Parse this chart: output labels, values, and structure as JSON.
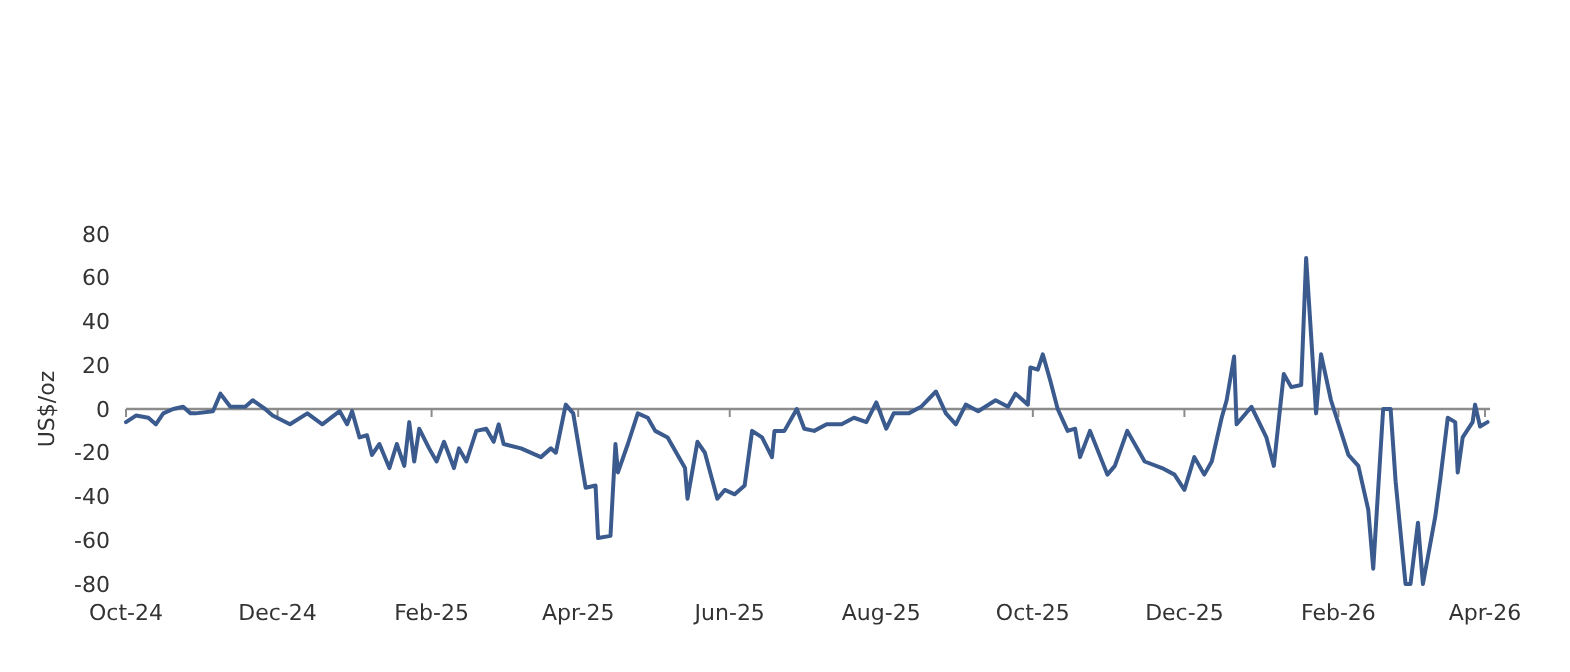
{
  "chart_data": {
    "type": "line",
    "ylabel": "US$/oz",
    "xlim": [
      "2024-10-01",
      "2026-04-03"
    ],
    "ylim": [
      -80,
      80
    ],
    "yticks": [
      -80,
      -60,
      -40,
      -20,
      0,
      20,
      40,
      60,
      80
    ],
    "xticks": [
      {
        "value": "2024-10-01",
        "label": "Oct-24"
      },
      {
        "value": "2024-12-01",
        "label": "Dec-24"
      },
      {
        "value": "2025-02-01",
        "label": "Feb-25"
      },
      {
        "value": "2025-04-01",
        "label": "Apr-25"
      },
      {
        "value": "2025-06-01",
        "label": "Jun-25"
      },
      {
        "value": "2025-08-01",
        "label": "Aug-25"
      },
      {
        "value": "2025-10-01",
        "label": "Oct-25"
      },
      {
        "value": "2025-12-01",
        "label": "Dec-25"
      },
      {
        "value": "2026-02-01",
        "label": "Feb-26"
      },
      {
        "value": "2026-04-01",
        "label": "Apr-26"
      }
    ],
    "line_style": "solid",
    "marker": "none",
    "x": [
      "2024-10-01",
      "2024-10-05",
      "2024-10-10",
      "2024-10-13",
      "2024-10-16",
      "2024-10-20",
      "2024-10-24",
      "2024-10-27",
      "2024-10-29",
      "2024-11-05",
      "2024-11-08",
      "2024-11-12",
      "2024-11-18",
      "2024-11-21",
      "2024-11-26",
      "2024-11-29",
      "2024-12-06",
      "2024-12-13",
      "2024-12-19",
      "2024-12-26",
      "2024-12-29",
      "2024-12-31",
      "2025-01-03",
      "2025-01-06",
      "2025-01-08",
      "2025-01-11",
      "2025-01-15",
      "2025-01-18",
      "2025-01-21",
      "2025-01-23",
      "2025-01-25",
      "2025-01-27",
      "2025-01-31",
      "2025-02-03",
      "2025-02-06",
      "2025-02-10",
      "2025-02-12",
      "2025-02-15",
      "2025-02-19",
      "2025-02-23",
      "2025-02-26",
      "2025-02-28",
      "2025-03-02",
      "2025-03-09",
      "2025-03-17",
      "2025-03-21",
      "2025-03-23",
      "2025-03-27",
      "2025-03-30",
      "2025-04-04",
      "2025-04-08",
      "2025-04-09",
      "2025-04-14",
      "2025-04-16",
      "2025-04-17",
      "2025-04-21",
      "2025-04-25",
      "2025-04-29",
      "2025-05-02",
      "2025-05-07",
      "2025-05-14",
      "2025-05-15",
      "2025-05-19",
      "2025-05-22",
      "2025-05-27",
      "2025-05-30",
      "2025-06-03",
      "2025-06-07",
      "2025-06-10",
      "2025-06-14",
      "2025-06-18",
      "2025-06-19",
      "2025-06-23",
      "2025-06-28",
      "2025-07-01",
      "2025-07-05",
      "2025-07-10",
      "2025-07-16",
      "2025-07-21",
      "2025-07-26",
      "2025-07-30",
      "2025-08-03",
      "2025-08-06",
      "2025-08-12",
      "2025-08-17",
      "2025-08-23",
      "2025-08-27",
      "2025-08-31",
      "2025-09-04",
      "2025-09-09",
      "2025-09-16",
      "2025-09-21",
      "2025-09-24",
      "2025-09-29",
      "2025-09-30",
      "2025-10-03",
      "2025-10-05",
      "2025-10-08",
      "2025-10-11",
      "2025-10-15",
      "2025-10-18",
      "2025-10-20",
      "2025-10-24",
      "2025-10-31",
      "2025-11-03",
      "2025-11-08",
      "2025-11-15",
      "2025-11-22",
      "2025-11-27",
      "2025-12-01",
      "2025-12-05",
      "2025-12-09",
      "2025-12-12",
      "2025-12-16",
      "2025-12-18",
      "2025-12-21",
      "2025-12-22",
      "2025-12-28",
      "2026-01-03",
      "2026-01-06",
      "2026-01-10",
      "2026-01-13",
      "2026-01-17",
      "2026-01-19",
      "2026-01-23",
      "2026-01-25",
      "2026-01-29",
      "2026-02-05",
      "2026-02-09",
      "2026-02-13",
      "2026-02-15",
      "2026-02-19",
      "2026-02-22",
      "2026-02-24",
      "2026-02-28",
      "2026-03-02",
      "2026-03-05",
      "2026-03-07",
      "2026-03-12",
      "2026-03-14",
      "2026-03-17",
      "2026-03-20",
      "2026-03-21",
      "2026-03-23",
      "2026-03-27",
      "2026-03-28",
      "2026-03-30",
      "2026-04-02"
    ],
    "series": [
      {
        "color": "#3b5b8e",
        "values": [
          -6,
          -3,
          -4,
          -7,
          -2,
          0,
          1,
          -2,
          -2,
          -1,
          7,
          1,
          1,
          4,
          0,
          -3,
          -7,
          -2,
          -7,
          -1,
          -7,
          -1,
          -13,
          -12,
          -21,
          -16,
          -27,
          -16,
          -26,
          -6,
          -24,
          -9,
          -18,
          -24,
          -15,
          -27,
          -18,
          -24,
          -10,
          -9,
          -15,
          -7,
          -16,
          -18,
          -22,
          -18,
          -20,
          2,
          -2,
          -36,
          -35,
          -59,
          -58,
          -16,
          -29,
          -16,
          -2,
          -4,
          -10,
          -13,
          -27,
          -41,
          -15,
          -20,
          -41,
          -37,
          -39,
          -35,
          -10,
          -13,
          -22,
          -10,
          -10,
          0,
          -9,
          -10,
          -7,
          -7,
          -4,
          -6,
          3,
          -9,
          -2,
          -2,
          1,
          8,
          -2,
          -7,
          2,
          -1,
          4,
          1,
          7,
          2,
          19,
          18,
          25,
          13,
          0,
          -10,
          -9,
          -22,
          -10,
          -30,
          -26,
          -10,
          -24,
          -27,
          -30,
          -37,
          -22,
          -30,
          -24,
          -4,
          4,
          24,
          -7,
          1,
          -13,
          -26,
          16,
          10,
          11,
          69,
          -2,
          25,
          4,
          -21,
          -26,
          -46,
          -73,
          0,
          0,
          -33,
          -80,
          -80,
          -52,
          -80,
          -49,
          -32,
          -4,
          -6,
          -29,
          -13,
          -6,
          2,
          -8,
          -6
        ]
      }
    ]
  }
}
